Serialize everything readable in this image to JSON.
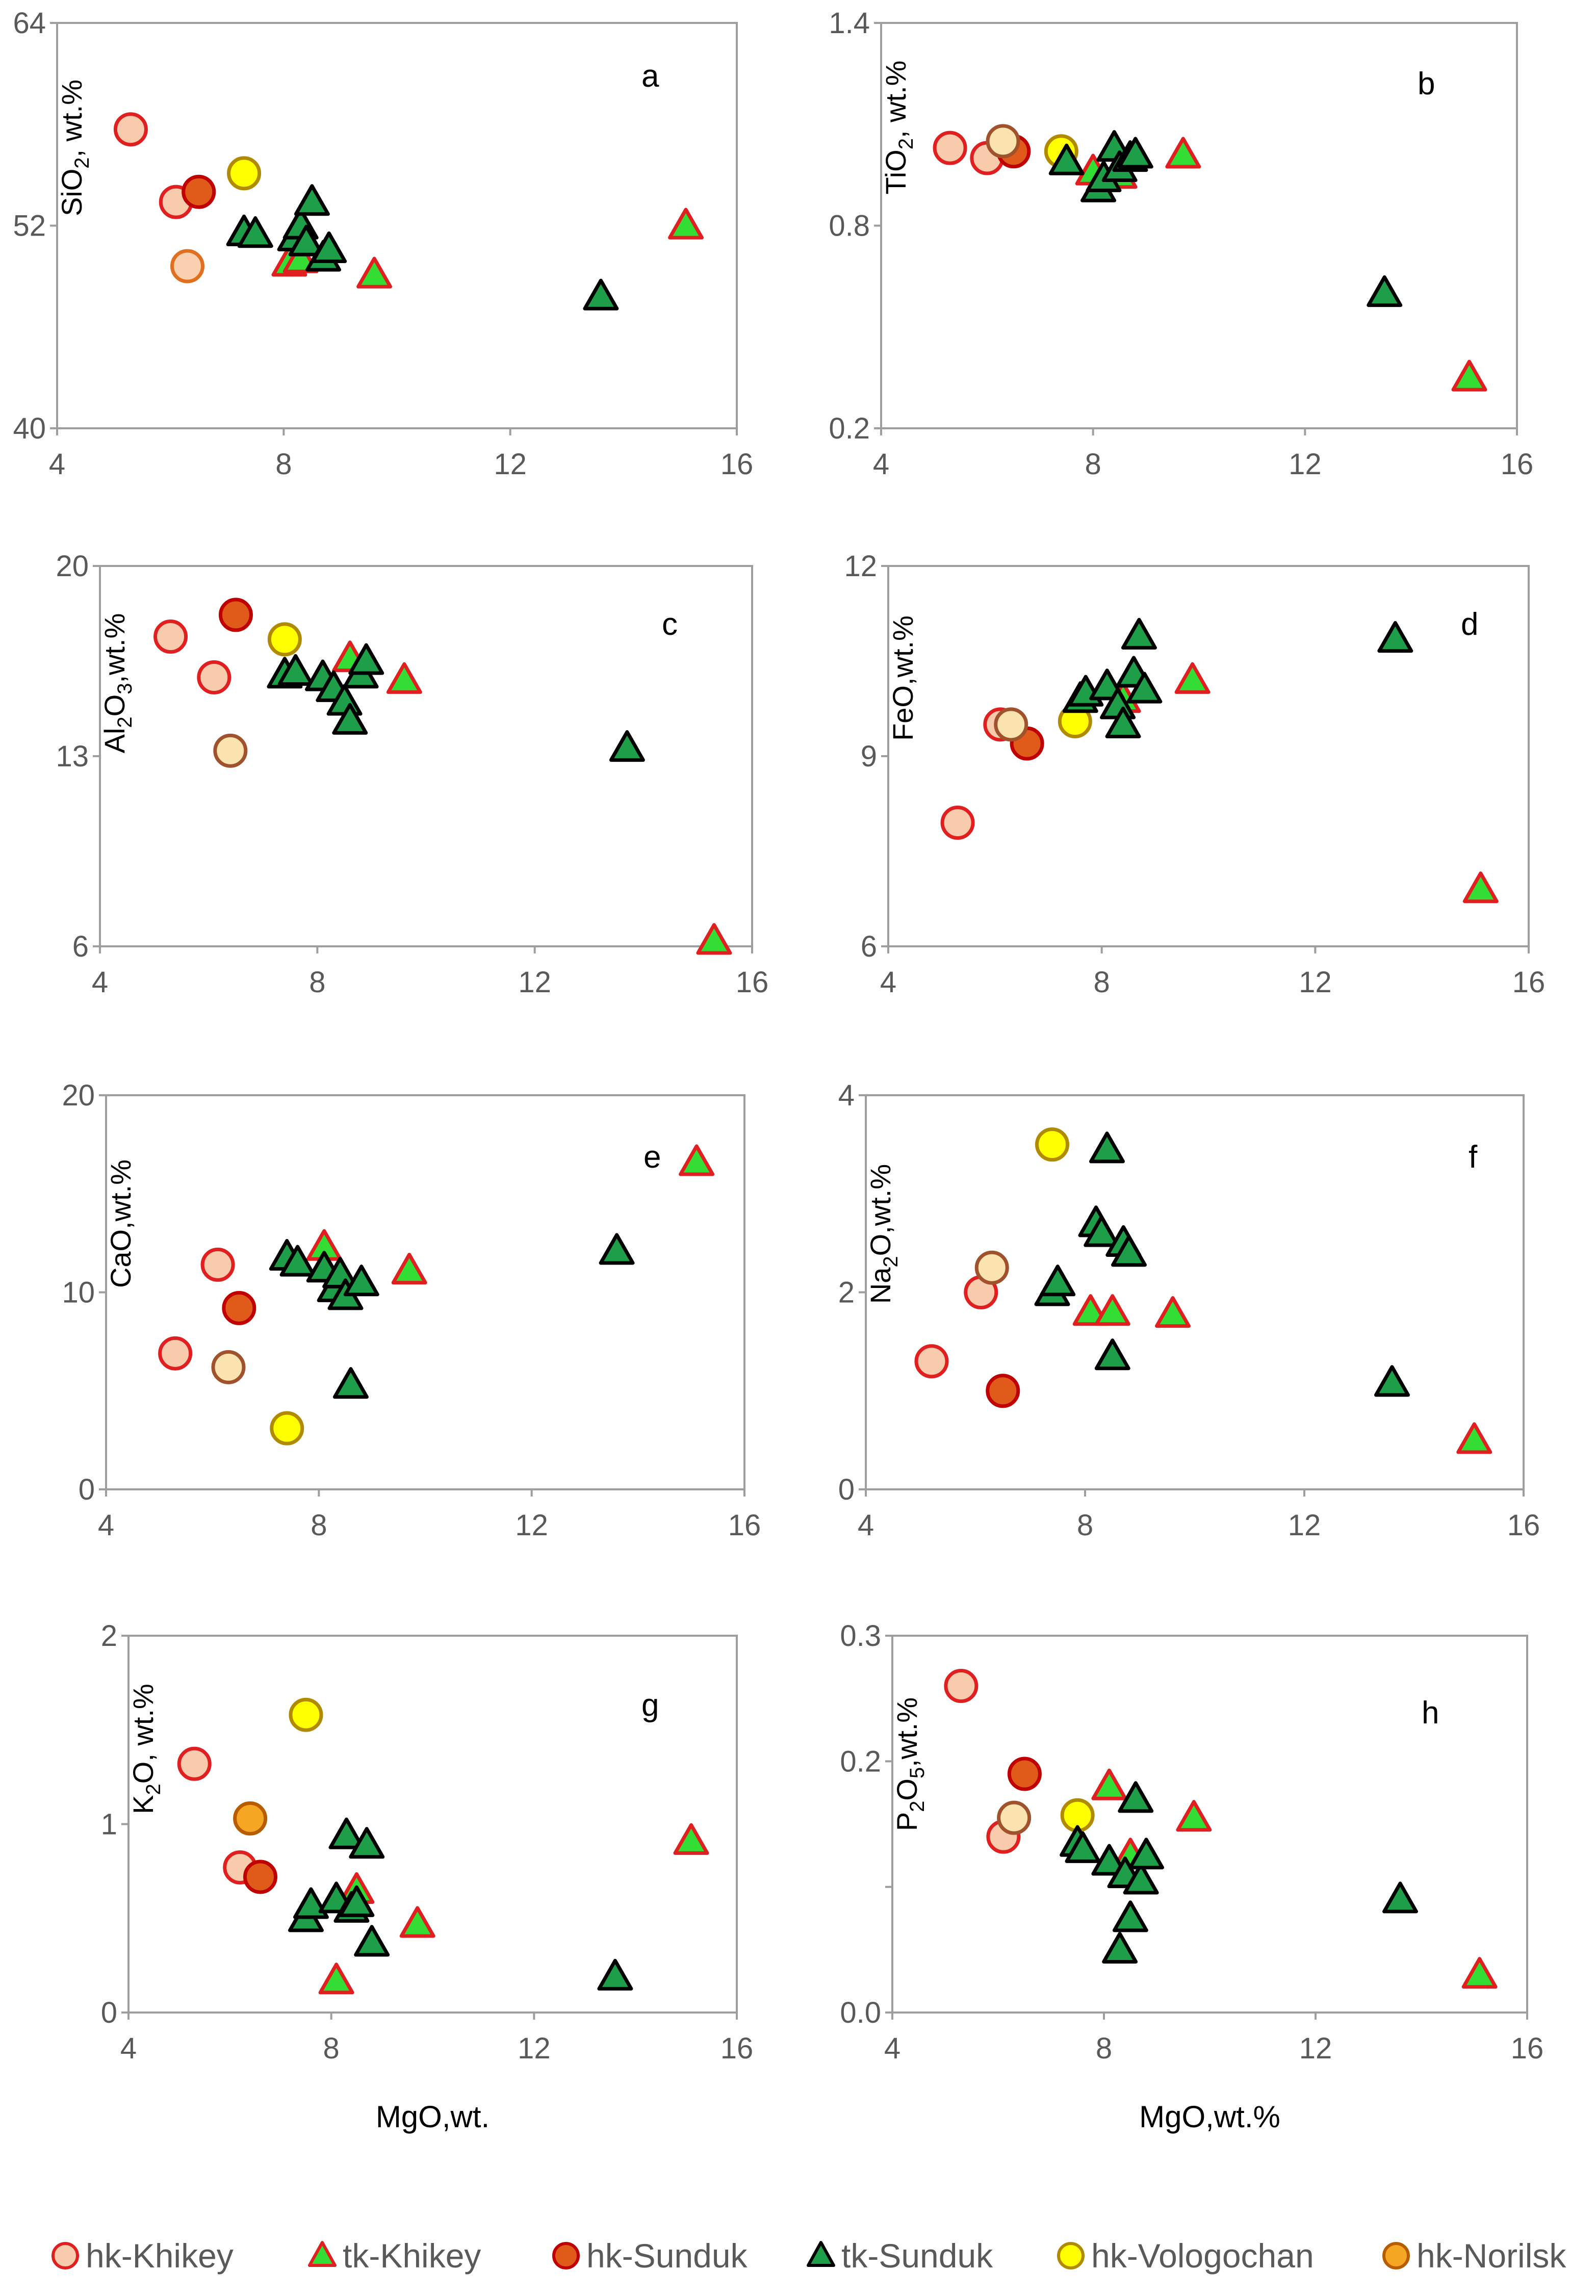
{
  "colors": {
    "hk_khikey": {
      "fill": "#f8cbad",
      "stroke": "#e02020"
    },
    "tk_khikey": {
      "fill": "#33dd33",
      "stroke": "#e02020"
    },
    "hk_sunduk": {
      "fill": "#e05a1a",
      "stroke": "#c00000"
    },
    "tk_sunduk": {
      "fill": "#1f9e4a",
      "stroke": "#000000"
    },
    "hk_vologochan": {
      "fill": "#ffff00",
      "stroke": "#b08a00"
    },
    "hk_norilsk": {
      "fill": "#f5a623",
      "stroke": "#b85c00"
    },
    "hk_norilsk_pale": {
      "fill": "#fbe3b0",
      "stroke": "#a0522d"
    }
  },
  "legend": [
    {
      "key": "hk_khikey",
      "marker": "circle",
      "label": "hk-Khikey"
    },
    {
      "key": "tk_khikey",
      "marker": "triangle",
      "label": "tk-Khikey"
    },
    {
      "key": "hk_sunduk",
      "marker": "circle",
      "label": "hk-Sunduk"
    },
    {
      "key": "tk_sunduk",
      "marker": "triangle",
      "label": "tk-Sunduk"
    },
    {
      "key": "hk_vologochan",
      "marker": "circle",
      "label": "hk-Vologochan"
    },
    {
      "key": "hk_norilsk",
      "marker": "circle",
      "label": "hk-Norilsk"
    }
  ],
  "chart_data": [
    {
      "type": "scatter",
      "panel_letter": "a",
      "ylabel": {
        "base": "SiO",
        "sub": "2",
        "rest": ", wt.%"
      },
      "xlabel": "",
      "xlim": [
        4,
        16
      ],
      "xticks": [
        "4",
        "8",
        "12",
        "16"
      ],
      "ylim": [
        40,
        64
      ],
      "yticks": [
        "40",
        "52",
        "64"
      ],
      "points": [
        {
          "g": "hk_khikey",
          "x": 5.3,
          "y": 57.7
        },
        {
          "g": "hk_khikey",
          "x": 6.1,
          "y": 53.4
        },
        {
          "g": "hk_khikey",
          "x": 6.3,
          "y": 49.6,
          "c": "#fbd0b0",
          "s": "#e07020"
        },
        {
          "g": "hk_sunduk",
          "x": 6.5,
          "y": 54.0
        },
        {
          "g": "hk_vologochan",
          "x": 7.3,
          "y": 55.1
        },
        {
          "g": "tk_khikey",
          "x": 8.1,
          "y": 49.8
        },
        {
          "g": "tk_khikey",
          "x": 8.3,
          "y": 50.0
        },
        {
          "g": "tk_khikey",
          "x": 9.6,
          "y": 49.1
        },
        {
          "g": "tk_khikey",
          "x": 15.1,
          "y": 52.0
        },
        {
          "g": "tk_sunduk",
          "x": 7.3,
          "y": 51.6
        },
        {
          "g": "tk_sunduk",
          "x": 7.5,
          "y": 51.5
        },
        {
          "g": "tk_sunduk",
          "x": 8.2,
          "y": 51.3
        },
        {
          "g": "tk_sunduk",
          "x": 8.3,
          "y": 52.0
        },
        {
          "g": "tk_sunduk",
          "x": 8.4,
          "y": 51.0
        },
        {
          "g": "tk_sunduk",
          "x": 8.5,
          "y": 53.4
        },
        {
          "g": "tk_sunduk",
          "x": 8.7,
          "y": 50.1
        },
        {
          "g": "tk_sunduk",
          "x": 8.8,
          "y": 50.6
        },
        {
          "g": "tk_sunduk",
          "x": 13.6,
          "y": 47.8
        }
      ]
    },
    {
      "type": "scatter",
      "panel_letter": "b",
      "ylabel": {
        "base": "TiO",
        "sub": "2",
        "rest": ", wt.%"
      },
      "xlabel": "",
      "xlim": [
        4,
        16
      ],
      "xticks": [
        "4",
        "8",
        "12",
        "16"
      ],
      "ylim": [
        0.2,
        1.4
      ],
      "yticks": [
        "0.2",
        "0.8",
        "1.4"
      ],
      "points": [
        {
          "g": "hk_khikey",
          "x": 5.3,
          "y": 1.03
        },
        {
          "g": "hk_khikey",
          "x": 6.0,
          "y": 1.0
        },
        {
          "g": "hk_sunduk",
          "x": 6.5,
          "y": 1.02
        },
        {
          "g": "hk_norilsk_pale",
          "x": 6.3,
          "y": 1.05
        },
        {
          "g": "hk_vologochan",
          "x": 7.4,
          "y": 1.02
        },
        {
          "g": "tk_khikey",
          "x": 8.0,
          "y": 0.96
        },
        {
          "g": "tk_khikey",
          "x": 8.5,
          "y": 0.95
        },
        {
          "g": "tk_khikey",
          "x": 9.7,
          "y": 1.01
        },
        {
          "g": "tk_khikey",
          "x": 15.1,
          "y": 0.35
        },
        {
          "g": "tk_sunduk",
          "x": 7.5,
          "y": 0.99
        },
        {
          "g": "tk_sunduk",
          "x": 8.1,
          "y": 0.91
        },
        {
          "g": "tk_sunduk",
          "x": 8.2,
          "y": 0.94
        },
        {
          "g": "tk_sunduk",
          "x": 8.4,
          "y": 1.03
        },
        {
          "g": "tk_sunduk",
          "x": 8.5,
          "y": 0.97
        },
        {
          "g": "tk_sunduk",
          "x": 8.7,
          "y": 1.0
        },
        {
          "g": "tk_sunduk",
          "x": 8.8,
          "y": 1.01
        },
        {
          "g": "tk_sunduk",
          "x": 13.5,
          "y": 0.6
        }
      ]
    },
    {
      "type": "scatter",
      "panel_letter": "c",
      "ylabel": {
        "base": "Al",
        "sub": "2",
        "mid": "O",
        "sub2": "3",
        "rest": ",wt.%"
      },
      "xlabel": "",
      "xlim": [
        4,
        16
      ],
      "xticks": [
        "4",
        "8",
        "12",
        "16"
      ],
      "ylim": [
        6,
        20
      ],
      "yticks": [
        "6",
        "13",
        "20"
      ],
      "points": [
        {
          "g": "hk_khikey",
          "x": 5.3,
          "y": 17.4
        },
        {
          "g": "hk_khikey",
          "x": 6.1,
          "y": 15.9
        },
        {
          "g": "hk_sunduk",
          "x": 6.5,
          "y": 18.2
        },
        {
          "g": "hk_norilsk_pale",
          "x": 6.4,
          "y": 13.2
        },
        {
          "g": "hk_vologochan",
          "x": 7.4,
          "y": 17.3
        },
        {
          "g": "tk_khikey",
          "x": 8.6,
          "y": 16.6
        },
        {
          "g": "tk_khikey",
          "x": 9.6,
          "y": 15.8
        },
        {
          "g": "tk_khikey",
          "x": 15.3,
          "y": 6.2
        },
        {
          "g": "tk_sunduk",
          "x": 7.4,
          "y": 16.0
        },
        {
          "g": "tk_sunduk",
          "x": 7.6,
          "y": 16.1
        },
        {
          "g": "tk_sunduk",
          "x": 8.1,
          "y": 15.9
        },
        {
          "g": "tk_sunduk",
          "x": 8.3,
          "y": 15.5
        },
        {
          "g": "tk_sunduk",
          "x": 8.5,
          "y": 15.0
        },
        {
          "g": "tk_sunduk",
          "x": 8.6,
          "y": 14.3
        },
        {
          "g": "tk_sunduk",
          "x": 8.8,
          "y": 16.0
        },
        {
          "g": "tk_sunduk",
          "x": 8.9,
          "y": 16.5
        },
        {
          "g": "tk_sunduk",
          "x": 13.7,
          "y": 13.3
        }
      ]
    },
    {
      "type": "scatter",
      "panel_letter": "d",
      "ylabel": {
        "base": "FeO,wt.%"
      },
      "xlabel": "",
      "xlim": [
        4,
        16
      ],
      "xticks": [
        "4",
        "8",
        "12",
        "16"
      ],
      "ylim": [
        6,
        12
      ],
      "yticks": [
        "6",
        "9",
        "12"
      ],
      "points": [
        {
          "g": "hk_khikey",
          "x": 5.3,
          "y": 7.95
        },
        {
          "g": "hk_khikey",
          "x": 6.1,
          "y": 9.5
        },
        {
          "g": "hk_sunduk",
          "x": 6.6,
          "y": 9.2
        },
        {
          "g": "hk_norilsk_pale",
          "x": 6.3,
          "y": 9.5
        },
        {
          "g": "hk_vologochan",
          "x": 7.5,
          "y": 9.55
        },
        {
          "g": "tk_khikey",
          "x": 8.4,
          "y": 9.9
        },
        {
          "g": "tk_khikey",
          "x": 9.7,
          "y": 10.2
        },
        {
          "g": "tk_khikey",
          "x": 15.1,
          "y": 6.9
        },
        {
          "g": "tk_sunduk",
          "x": 7.6,
          "y": 9.9
        },
        {
          "g": "tk_sunduk",
          "x": 7.7,
          "y": 10.0
        },
        {
          "g": "tk_sunduk",
          "x": 8.1,
          "y": 10.1
        },
        {
          "g": "tk_sunduk",
          "x": 8.3,
          "y": 9.8
        },
        {
          "g": "tk_sunduk",
          "x": 8.4,
          "y": 9.5
        },
        {
          "g": "tk_sunduk",
          "x": 8.6,
          "y": 10.3
        },
        {
          "g": "tk_sunduk",
          "x": 8.7,
          "y": 10.9
        },
        {
          "g": "tk_sunduk",
          "x": 8.8,
          "y": 10.05
        },
        {
          "g": "tk_sunduk",
          "x": 13.5,
          "y": 10.85
        }
      ]
    },
    {
      "type": "scatter",
      "panel_letter": "e",
      "ylabel": {
        "base": "CaO,wt.%"
      },
      "xlabel": "",
      "xlim": [
        4,
        16
      ],
      "xticks": [
        "4",
        "8",
        "12",
        "16"
      ],
      "ylim": [
        0,
        20
      ],
      "yticks": [
        "0",
        "10",
        "20"
      ],
      "points": [
        {
          "g": "hk_khikey",
          "x": 5.3,
          "y": 6.9
        },
        {
          "g": "hk_khikey",
          "x": 6.1,
          "y": 11.4
        },
        {
          "g": "hk_sunduk",
          "x": 6.5,
          "y": 9.2
        },
        {
          "g": "hk_norilsk_pale",
          "x": 6.3,
          "y": 6.2
        },
        {
          "g": "hk_vologochan",
          "x": 7.4,
          "y": 3.1
        },
        {
          "g": "tk_khikey",
          "x": 8.1,
          "y": 12.3
        },
        {
          "g": "tk_khikey",
          "x": 9.7,
          "y": 11.1
        },
        {
          "g": "tk_khikey",
          "x": 15.1,
          "y": 16.6
        },
        {
          "g": "tk_sunduk",
          "x": 7.4,
          "y": 11.8
        },
        {
          "g": "tk_sunduk",
          "x": 7.6,
          "y": 11.5
        },
        {
          "g": "tk_sunduk",
          "x": 8.1,
          "y": 11.2
        },
        {
          "g": "tk_sunduk",
          "x": 8.3,
          "y": 10.2
        },
        {
          "g": "tk_sunduk",
          "x": 8.4,
          "y": 10.9
        },
        {
          "g": "tk_sunduk",
          "x": 8.5,
          "y": 9.8
        },
        {
          "g": "tk_sunduk",
          "x": 8.6,
          "y": 5.3
        },
        {
          "g": "tk_sunduk",
          "x": 8.8,
          "y": 10.5
        },
        {
          "g": "tk_sunduk",
          "x": 13.6,
          "y": 12.1
        }
      ]
    },
    {
      "type": "scatter",
      "panel_letter": "f",
      "ylabel": {
        "base": "Na",
        "sub": "2",
        "mid": "O,wt.%"
      },
      "xlabel": "",
      "xlim": [
        4,
        16
      ],
      "xticks": [
        "4",
        "8",
        "12",
        "16"
      ],
      "ylim": [
        0,
        4
      ],
      "yticks": [
        "0",
        "2",
        "4"
      ],
      "points": [
        {
          "g": "hk_khikey",
          "x": 5.2,
          "y": 1.3
        },
        {
          "g": "hk_khikey",
          "x": 6.1,
          "y": 2.0
        },
        {
          "g": "hk_sunduk",
          "x": 6.5,
          "y": 1.0
        },
        {
          "g": "hk_norilsk_pale",
          "x": 6.3,
          "y": 2.25
        },
        {
          "g": "hk_vologochan",
          "x": 7.4,
          "y": 3.5
        },
        {
          "g": "tk_khikey",
          "x": 8.1,
          "y": 1.8
        },
        {
          "g": "tk_khikey",
          "x": 8.5,
          "y": 1.8
        },
        {
          "g": "tk_khikey",
          "x": 9.6,
          "y": 1.78
        },
        {
          "g": "tk_khikey",
          "x": 15.1,
          "y": 0.5
        },
        {
          "g": "tk_sunduk",
          "x": 7.4,
          "y": 2.0
        },
        {
          "g": "tk_sunduk",
          "x": 7.5,
          "y": 2.1
        },
        {
          "g": "tk_sunduk",
          "x": 8.2,
          "y": 2.7
        },
        {
          "g": "tk_sunduk",
          "x": 8.3,
          "y": 2.6
        },
        {
          "g": "tk_sunduk",
          "x": 8.4,
          "y": 3.45
        },
        {
          "g": "tk_sunduk",
          "x": 8.5,
          "y": 1.35
        },
        {
          "g": "tk_sunduk",
          "x": 8.7,
          "y": 2.5
        },
        {
          "g": "tk_sunduk",
          "x": 8.8,
          "y": 2.4
        },
        {
          "g": "tk_sunduk",
          "x": 13.6,
          "y": 1.08
        }
      ]
    },
    {
      "type": "scatter",
      "panel_letter": "g",
      "ylabel": {
        "base": "K",
        "sub": "2",
        "mid": "O, wt.%"
      },
      "xlabel": "MgO,wt.",
      "xlim": [
        4,
        16
      ],
      "xticks": [
        "4",
        "8",
        "12",
        "16"
      ],
      "ylim": [
        0,
        2
      ],
      "yticks": [
        "0",
        "1",
        "2"
      ],
      "points": [
        {
          "g": "hk_khikey",
          "x": 5.3,
          "y": 1.32
        },
        {
          "g": "hk_khikey",
          "x": 6.2,
          "y": 0.77
        },
        {
          "g": "hk_sunduk",
          "x": 6.6,
          "y": 0.72
        },
        {
          "g": "hk_norilsk",
          "x": 6.4,
          "y": 1.03
        },
        {
          "g": "hk_vologochan",
          "x": 7.5,
          "y": 1.58
        },
        {
          "g": "tk_khikey",
          "x": 8.1,
          "y": 0.17
        },
        {
          "g": "tk_khikey",
          "x": 8.5,
          "y": 0.65
        },
        {
          "g": "tk_khikey",
          "x": 9.7,
          "y": 0.47
        },
        {
          "g": "tk_khikey",
          "x": 15.1,
          "y": 0.91
        },
        {
          "g": "tk_sunduk",
          "x": 7.5,
          "y": 0.5
        },
        {
          "g": "tk_sunduk",
          "x": 7.6,
          "y": 0.57
        },
        {
          "g": "tk_sunduk",
          "x": 8.1,
          "y": 0.6
        },
        {
          "g": "tk_sunduk",
          "x": 8.3,
          "y": 0.94
        },
        {
          "g": "tk_sunduk",
          "x": 8.4,
          "y": 0.55
        },
        {
          "g": "tk_sunduk",
          "x": 8.5,
          "y": 0.58
        },
        {
          "g": "tk_sunduk",
          "x": 8.7,
          "y": 0.89
        },
        {
          "g": "tk_sunduk",
          "x": 8.8,
          "y": 0.37
        },
        {
          "g": "tk_sunduk",
          "x": 13.6,
          "y": 0.19
        }
      ]
    },
    {
      "type": "scatter",
      "panel_letter": "h",
      "ylabel": {
        "base": "P",
        "sub": "2",
        "mid": "O",
        "sub2": "5",
        "rest": ",wt.%"
      },
      "xlabel": "MgO,wt.%",
      "xlim": [
        4,
        16
      ],
      "xticks": [
        "4",
        "8",
        "12",
        "16"
      ],
      "ylim": [
        0.0,
        0.3
      ],
      "yticks": [
        "0.0",
        "0.1",
        "0.2",
        "0.3"
      ],
      "ytick_labels_shown": [
        "0.0",
        "0.2",
        "0.3"
      ],
      "points": [
        {
          "g": "hk_khikey",
          "x": 5.3,
          "y": 0.26
        },
        {
          "g": "hk_khikey",
          "x": 6.1,
          "y": 0.14
        },
        {
          "g": "hk_sunduk",
          "x": 6.5,
          "y": 0.19
        },
        {
          "g": "hk_norilsk_pale",
          "x": 6.3,
          "y": 0.155
        },
        {
          "g": "hk_vologochan",
          "x": 7.5,
          "y": 0.157
        },
        {
          "g": "tk_khikey",
          "x": 8.1,
          "y": 0.18
        },
        {
          "g": "tk_khikey",
          "x": 8.5,
          "y": 0.125
        },
        {
          "g": "tk_khikey",
          "x": 9.7,
          "y": 0.155
        },
        {
          "g": "tk_khikey",
          "x": 15.1,
          "y": 0.03
        },
        {
          "g": "tk_sunduk",
          "x": 7.5,
          "y": 0.135
        },
        {
          "g": "tk_sunduk",
          "x": 7.6,
          "y": 0.13
        },
        {
          "g": "tk_sunduk",
          "x": 8.1,
          "y": 0.12
        },
        {
          "g": "tk_sunduk",
          "x": 8.3,
          "y": 0.05
        },
        {
          "g": "tk_sunduk",
          "x": 8.4,
          "y": 0.11
        },
        {
          "g": "tk_sunduk",
          "x": 8.5,
          "y": 0.075
        },
        {
          "g": "tk_sunduk",
          "x": 8.6,
          "y": 0.17
        },
        {
          "g": "tk_sunduk",
          "x": 8.7,
          "y": 0.105
        },
        {
          "g": "tk_sunduk",
          "x": 8.8,
          "y": 0.125
        },
        {
          "g": "tk_sunduk",
          "x": 13.6,
          "y": 0.09
        }
      ]
    }
  ]
}
